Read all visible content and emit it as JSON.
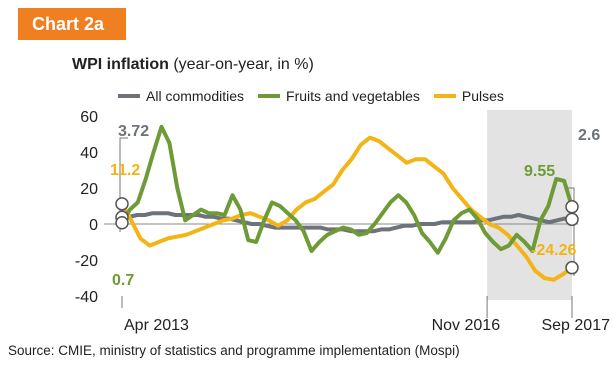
{
  "badge": "Chart 2a",
  "title": {
    "bold": "WPI inflation",
    "rest": " (year-on-year, in %)"
  },
  "source": "Source: CMIE, ministry of statistics and programme implementation (Mospi)",
  "colors": {
    "all": "#6d737a",
    "fruits": "#6e9b35",
    "pulses": "#f2b417",
    "shade": "#e3e3e3",
    "badge": "#f07f22"
  },
  "chart_data": {
    "type": "line",
    "ylim": [
      -40,
      60
    ],
    "yticks": [
      60,
      40,
      20,
      0,
      -20,
      -40
    ],
    "xlabels": [
      "Apr 2013",
      "Nov 2016",
      "Sep 2017"
    ],
    "shaded_range": [
      "2016-11",
      "2017-09"
    ],
    "series": [
      {
        "name": "All commodities",
        "start": "2013-04",
        "values": [
          3.72,
          4,
          5,
          5,
          6,
          6,
          6,
          5,
          5,
          5,
          5,
          4,
          4,
          3,
          3,
          2,
          1,
          0,
          0,
          -1,
          -2,
          -2,
          -2,
          -2,
          -2,
          -2,
          -2,
          -3,
          -3,
          -3,
          -4,
          -4,
          -4,
          -4,
          -3,
          -3,
          -2,
          -1,
          -1,
          0,
          0,
          0,
          1,
          1,
          1,
          1,
          1,
          2,
          2,
          3,
          4,
          4,
          5,
          4,
          3,
          2,
          1,
          2,
          3,
          2.6
        ]
      },
      {
        "name": "Fruits and vegetables",
        "start": "2013-04",
        "values": [
          0.7,
          8,
          12,
          25,
          40,
          54,
          45,
          20,
          2,
          5,
          8,
          6,
          6,
          5,
          16,
          8,
          -9,
          -10,
          2,
          12,
          10,
          6,
          2,
          -4,
          -15,
          -10,
          -6,
          -4,
          -2,
          -3,
          -6,
          -5,
          0,
          6,
          12,
          16,
          12,
          5,
          -5,
          -10,
          -16,
          -8,
          2,
          6,
          8,
          3,
          -5,
          -10,
          -14,
          -12,
          -6,
          -10,
          -15,
          2,
          10,
          25,
          24,
          9.55
        ]
      },
      {
        "name": "Pulses",
        "start": "2013-04",
        "values": [
          11.2,
          2,
          -8,
          -12,
          -10,
          -8,
          -7,
          -6,
          -4,
          -2,
          0,
          2,
          3,
          5,
          6,
          4,
          2,
          -1,
          2,
          8,
          12,
          14,
          18,
          22,
          30,
          36,
          44,
          48,
          46,
          42,
          38,
          34,
          36,
          36,
          32,
          28,
          20,
          14,
          8,
          4,
          0,
          -2,
          -6,
          -12,
          -18,
          -26,
          -30,
          -31,
          -28,
          -24.26
        ]
      }
    ],
    "annotations": [
      {
        "series": "All commodities",
        "value": "3.72"
      },
      {
        "series": "Pulses",
        "value": "11.2"
      },
      {
        "series": "Fruits and vegetables",
        "value": "0.7"
      },
      {
        "series": "Fruits and vegetables",
        "value": "9.55"
      },
      {
        "series": "All commodities",
        "value": "2.6"
      },
      {
        "series": "Pulses",
        "value": "-24.26"
      }
    ]
  }
}
